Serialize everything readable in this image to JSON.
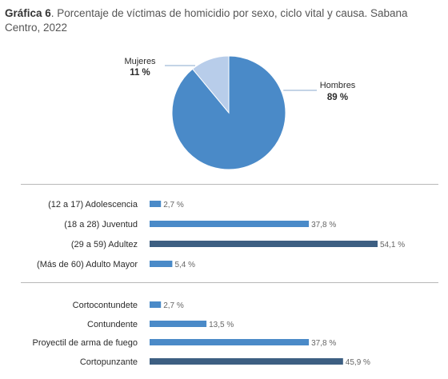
{
  "title": {
    "prefix": "Gráfica 6",
    "text": ". Porcentaje de víctimas de homicidio por sexo, ciclo vital y causa. Sabana Centro, 2022"
  },
  "colors": {
    "dark": "#3d5f82",
    "medium": "#4a8ac8",
    "light": "#b8cdea",
    "text": "#2b2b2b",
    "value_text": "#666666",
    "leader": "#8aa8cc"
  },
  "chart_data": [
    {
      "type": "pie",
      "categories": [
        "Hombres",
        "Mujeres"
      ],
      "values": [
        89,
        11
      ],
      "value_labels": [
        "89 %",
        "11 %"
      ],
      "colors": [
        "#4a8ac8",
        "#b8cdea"
      ]
    },
    {
      "type": "bar",
      "orientation": "horizontal",
      "categories": [
        "(12 a 17) Adolescencia",
        "(18 a 28) Juventud",
        "(29 a 59) Adultez",
        "(Más de 60) Adulto Mayor"
      ],
      "values": [
        2.7,
        37.8,
        54.1,
        5.4
      ],
      "value_labels": [
        "2,7 %",
        "37,8 %",
        "54,1 %",
        "5,4 %"
      ],
      "highlight": [
        false,
        false,
        true,
        false
      ]
    },
    {
      "type": "bar",
      "orientation": "horizontal",
      "categories": [
        "Cortocontundete",
        "Contundente",
        "Proyectil de arma de fuego",
        "Cortopunzante"
      ],
      "values": [
        2.7,
        13.5,
        37.8,
        45.9
      ],
      "value_labels": [
        "2,7 %",
        "13,5 %",
        "37,8 %",
        "45,9 %"
      ],
      "highlight": [
        false,
        false,
        false,
        true
      ]
    }
  ]
}
